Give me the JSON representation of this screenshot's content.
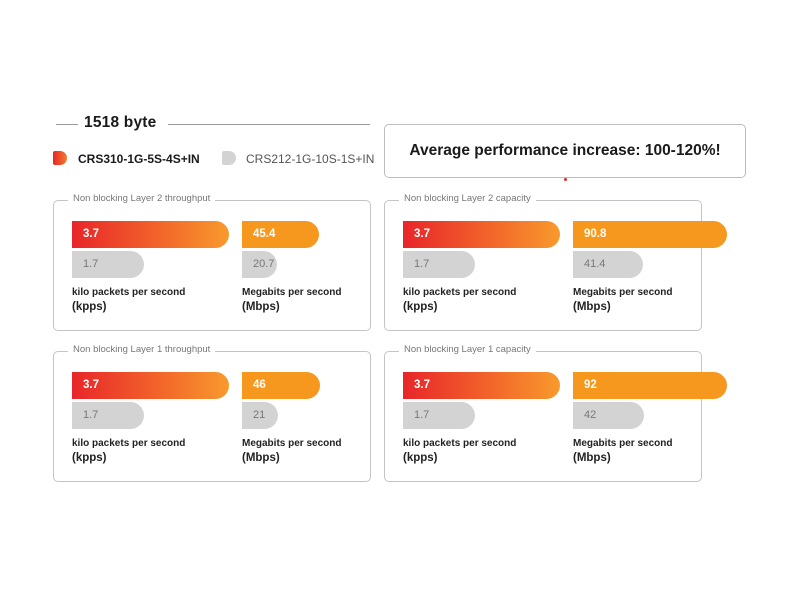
{
  "header": {
    "title": "1518 byte",
    "callout": "Average performance increase: 100-120%!"
  },
  "legend": {
    "items": [
      {
        "label": "CRS310-1G-5S-4S+IN",
        "color": "#e8262a"
      },
      {
        "label": "CRS212-1G-10S-1S+IN",
        "color": "#d3d3d3"
      }
    ]
  },
  "colors": {
    "kpps_new": "#e8262a",
    "mbps_new": "#f7981e",
    "old": "#d3d3d3"
  },
  "units": {
    "kpps_line1": "kilo packets per second",
    "kpps_line2": "(kpps)",
    "mbps_line1": "Megabits per second",
    "mbps_line2": "(Mbps)"
  },
  "chart_data": [
    {
      "type": "bar",
      "title": "Non blocking Layer 2 throughput",
      "categories": [
        "kpps",
        "Mbps"
      ],
      "series": [
        {
          "name": "CRS310-1G-5S-4S+IN",
          "values": [
            3.7,
            45.4
          ],
          "labels": [
            "3.7",
            "45.4"
          ]
        },
        {
          "name": "CRS212-1G-10S-1S+IN",
          "values": [
            1.7,
            20.7
          ],
          "labels": [
            "1.7",
            "20.7"
          ]
        }
      ]
    },
    {
      "type": "bar",
      "title": "Non blocking Layer 2 capacity",
      "categories": [
        "kpps",
        "Mbps"
      ],
      "series": [
        {
          "name": "CRS310-1G-5S-4S+IN",
          "values": [
            3.7,
            90.8
          ],
          "labels": [
            "3.7",
            "90.8"
          ]
        },
        {
          "name": "CRS212-1G-10S-1S+IN",
          "values": [
            1.7,
            41.4
          ],
          "labels": [
            "1.7",
            "41.4"
          ]
        }
      ]
    },
    {
      "type": "bar",
      "title": "Non blocking Layer 1 throughput",
      "categories": [
        "kpps",
        "Mbps"
      ],
      "series": [
        {
          "name": "CRS310-1G-5S-4S+IN",
          "values": [
            3.7,
            46
          ],
          "labels": [
            "3.7",
            "46"
          ]
        },
        {
          "name": "CRS212-1G-10S-1S+IN",
          "values": [
            1.7,
            21
          ],
          "labels": [
            "1.7",
            "21"
          ]
        }
      ]
    },
    {
      "type": "bar",
      "title": "Non blocking Layer 1 capacity",
      "categories": [
        "kpps",
        "Mbps"
      ],
      "series": [
        {
          "name": "CRS310-1G-5S-4S+IN",
          "values": [
            3.7,
            92
          ],
          "labels": [
            "3.7",
            "92"
          ]
        },
        {
          "name": "CRS212-1G-10S-1S+IN",
          "values": [
            1.7,
            42
          ],
          "labels": [
            "1.7",
            "42"
          ]
        }
      ]
    }
  ]
}
